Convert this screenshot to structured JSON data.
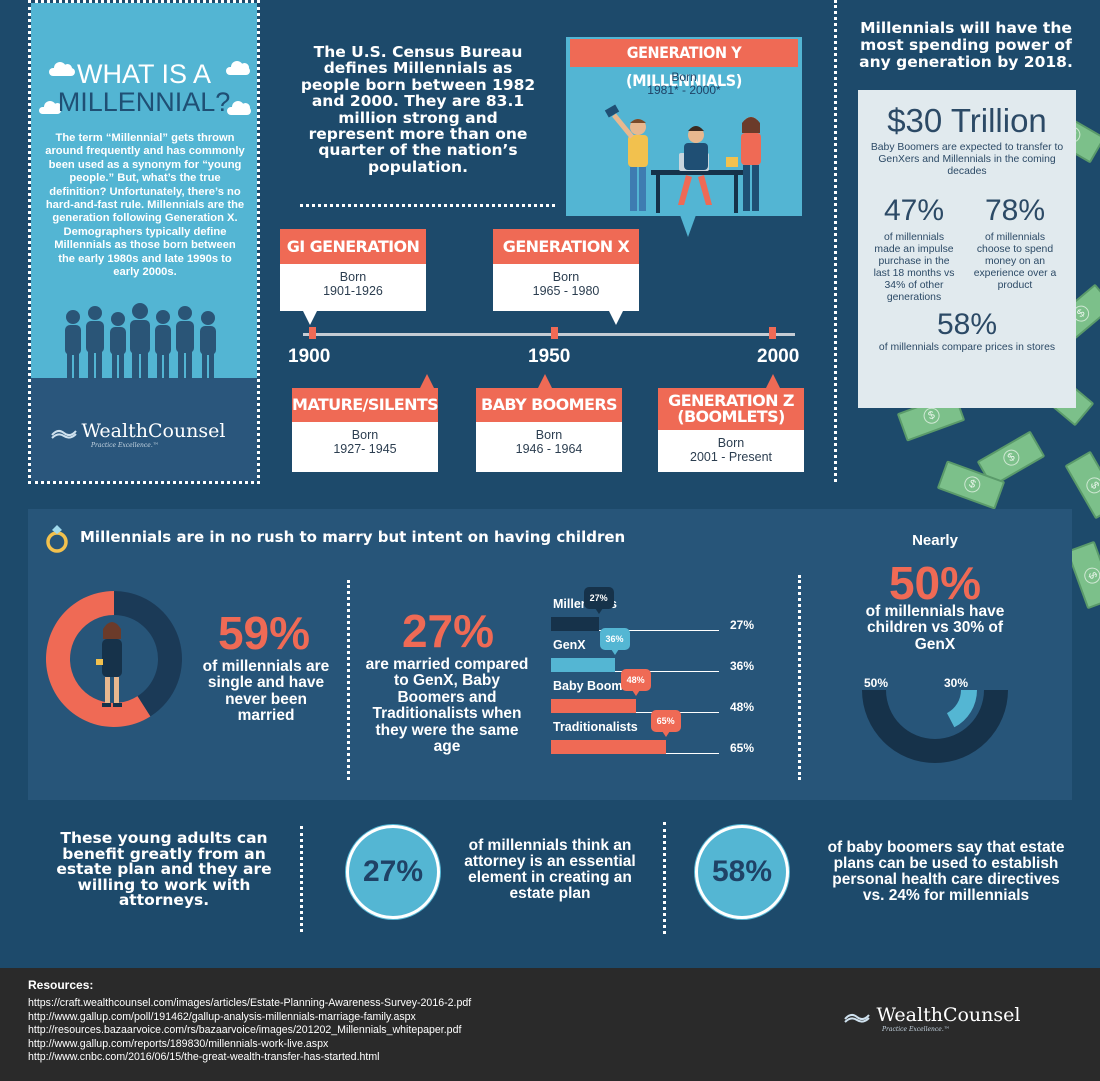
{
  "intro": {
    "title_line1": "WHAT IS A",
    "title_line2": "MILLENNIAL?",
    "body": "The term “Millennial” gets thrown around frequently and has commonly been used as a synonym for “young people.” But, what’s the true definition? Unfortunately, there’s no hard-and-fast rule. Millennials are the generation following Generation X. Demographers typically define Millennials as those born between the early 1980s and late 1990s to early 2000s."
  },
  "logo": {
    "name": "WealthCounsel",
    "tagline": "Practice Excellence.™"
  },
  "census": {
    "text": "The U.S. Census Bureau defines Millennials as people born between 1982 and 2000. They are 83.1 million strong and represent more than one quarter of the nation’s population."
  },
  "geny": {
    "title": "GENERATION Y (MILLENNIALS)",
    "born_label": "Born",
    "born_range": "1981* - 2000*"
  },
  "timeline": {
    "years": [
      "1900",
      "1950",
      "2000"
    ],
    "top_cards": [
      {
        "title": "GI GENERATION",
        "born_label": "Born",
        "range": "1901-1926"
      },
      {
        "title": "GENERATION X",
        "born_label": "Born",
        "range": "1965 - 1980"
      }
    ],
    "bottom_cards": [
      {
        "title": "MATURE/SILENTS",
        "born_label": "Born",
        "range": "1927- 1945"
      },
      {
        "title": "BABY BOOMERS",
        "born_label": "Born",
        "range": "1946 - 1964"
      },
      {
        "title_line1": "GENERATION Z",
        "title_line2": "(BOOMLETS)",
        "born_label": "Born",
        "range": "2001 - Present"
      }
    ]
  },
  "spending": {
    "title": "Millennials will have the most spending power of any generation by 2018.",
    "amount": "$30 Trillion",
    "amount_desc": "Baby Boomers are expected to transfer to GenXers and Millennials in the coming decades",
    "stat1_pct": "47%",
    "stat1_desc": "of millennials made an impulse purchase in the last 18 months vs 34% of other generations",
    "stat2_pct": "78%",
    "stat2_desc": "of millennials choose to spend money on an experience over a product",
    "stat3_pct": "58%",
    "stat3_desc": "of millennials compare prices in stores"
  },
  "marriage": {
    "title": "Millennials are in no rush to marry but intent on having children",
    "single_pct": "59%",
    "single_desc": "of millennials are single and have never been married",
    "married_pct": "27%",
    "married_desc": "are married compared to GenX, Baby Boomers and Traditionalists when they were the same age",
    "nearly": "Nearly",
    "children_pct": "50%",
    "children_desc": "of millennials have children vs 30% of GenX",
    "gauge_left_label": "50%",
    "gauge_right_label": "30%"
  },
  "chart_data": [
    {
      "type": "pie",
      "categories": [
        "single and never married",
        "other"
      ],
      "values": [
        59,
        41
      ],
      "colors": [
        "#ef6a55",
        "#1b3a57"
      ]
    },
    {
      "type": "bar",
      "categories": [
        "Millennials",
        "GenX",
        "Baby Boomers",
        "Traditionalists"
      ],
      "display_labels": [
        "Millennials",
        "GenX",
        "Baby Boomers",
        "Traditionalists"
      ],
      "values": [
        27,
        36,
        48,
        65
      ],
      "value_labels": [
        "27%",
        "36%",
        "48%",
        "65%"
      ],
      "colors": [
        "#16324a",
        "#54b6d3",
        "#ef6a55",
        "#ef6a55"
      ],
      "ylim": [
        0,
        100
      ]
    },
    {
      "type": "gauge",
      "categories": [
        "millennials",
        "GenX"
      ],
      "values": [
        50,
        30
      ],
      "colors": [
        "#16324a",
        "#54b6d3"
      ]
    }
  ],
  "estate": {
    "intro": "These young adults can benefit greatly from an estate plan and they are willing to work with attorneys.",
    "stat1_pct": "27%",
    "stat1_desc": "of millennials think an attorney is an essential element in creating an estate plan",
    "stat2_pct": "58%",
    "stat2_desc": "of baby boomers say that estate plans can be used to establish personal health care directives vs. 24% for millennials"
  },
  "resources": {
    "title": "Resources:",
    "links": [
      "https://craft.wealthcounsel.com/images/articles/Estate-Planning-Awareness-Survey-2016-2.pdf",
      "http://www.gallup.com/poll/191462/gallup-analysis-millennials-marriage-family.aspx",
      "http://resources.bazaarvoice.com/rs/bazaarvoice/images/201202_Millennials_whitepaper.pdf",
      "http://www.gallup.com/reports/189830/millennials-work-live.aspx",
      "http://www.cnbc.com/2016/06/15/the-great-wealth-transfer-has-started.html"
    ]
  },
  "colors": {
    "background": "#1d4a6b",
    "teal": "#53b5d3",
    "coral": "#ef6a55",
    "panel": "#275579",
    "footer": "#2a2a2a"
  }
}
